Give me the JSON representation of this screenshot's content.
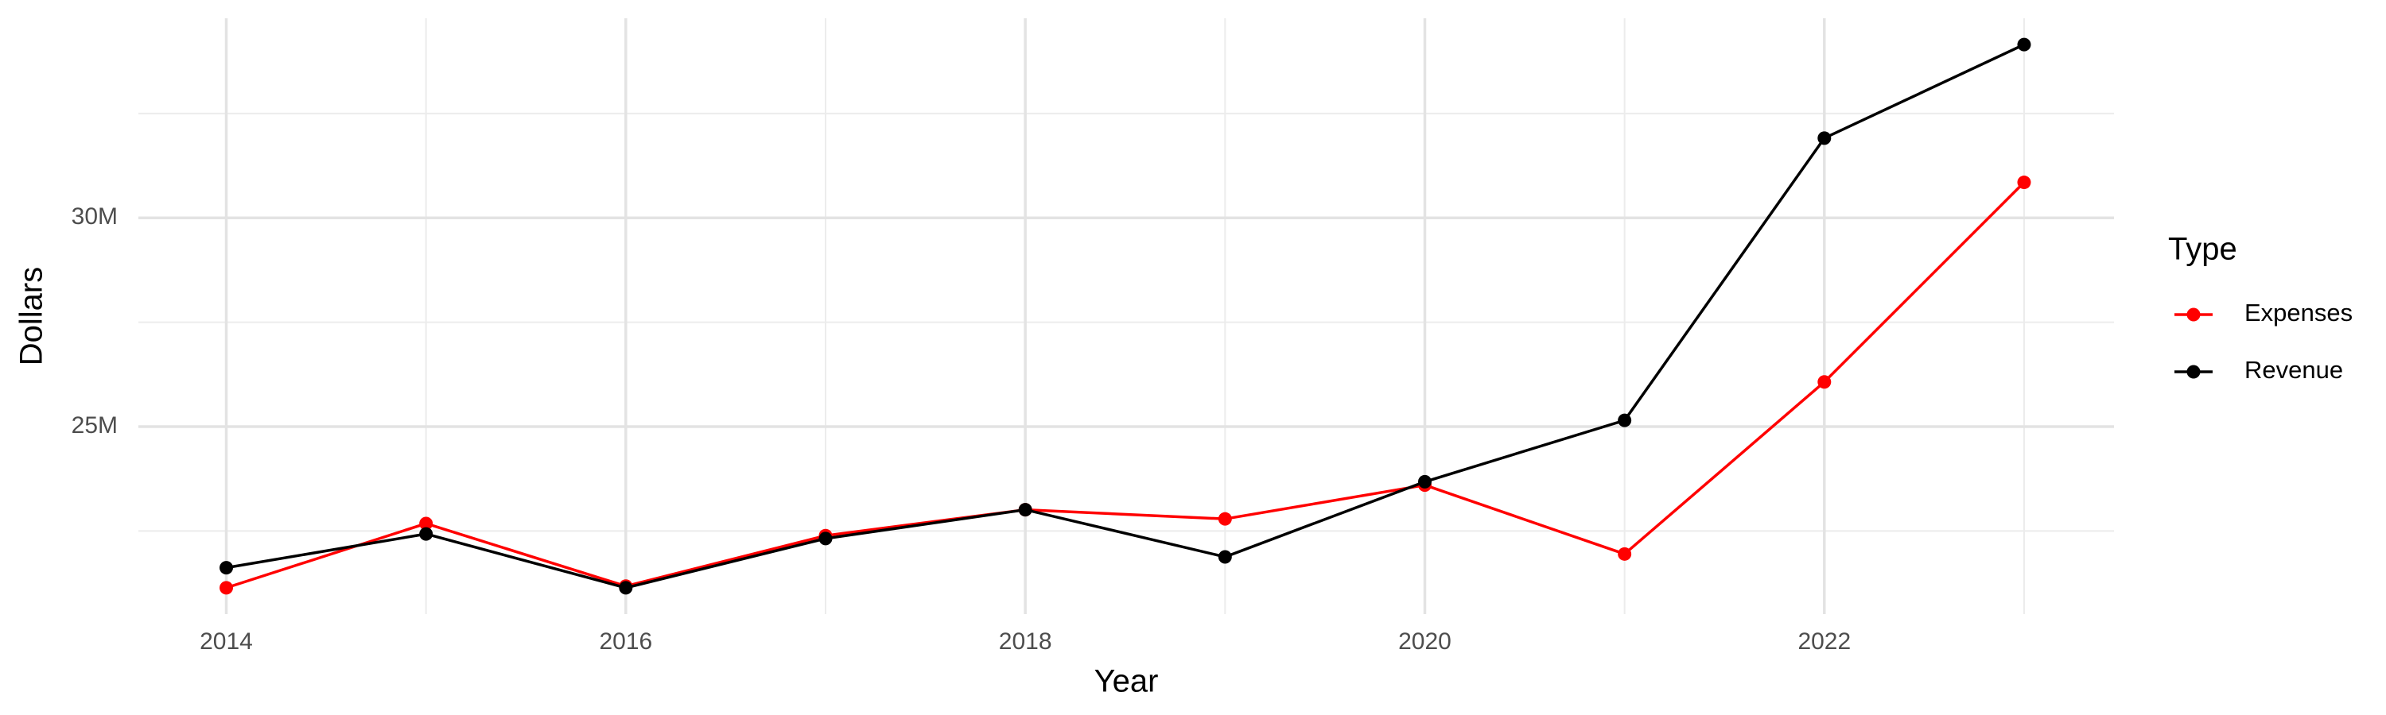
{
  "chart_data": {
    "type": "line",
    "x_label": "Year",
    "y_label": "Dollars",
    "legend_title": "Type",
    "legend_position": "right",
    "grid": true,
    "x": [
      2014,
      2015,
      2016,
      2017,
      2018,
      2019,
      2020,
      2021,
      2022,
      2023
    ],
    "series": [
      {
        "name": "Expenses",
        "color": "#ff0000",
        "values": [
          21140000,
          22680000,
          21180000,
          22390000,
          23010000,
          22790000,
          23600000,
          21950000,
          26070000,
          30850000
        ]
      },
      {
        "name": "Revenue",
        "color": "#000000",
        "values": [
          21620000,
          22430000,
          21140000,
          22320000,
          23010000,
          21880000,
          23680000,
          25150000,
          31910000,
          34150000
        ]
      }
    ],
    "xlim": [
      2013.56,
      2023.45
    ],
    "xticks": [
      2014,
      2016,
      2018,
      2020,
      2022
    ],
    "minor_xticks": [
      2015,
      2017,
      2019,
      2021,
      2023
    ],
    "ylim": [
      20510000,
      34780000
    ],
    "yticks": [
      {
        "value": 25000000,
        "label": "25M"
      },
      {
        "value": 30000000,
        "label": "30M"
      }
    ],
    "minor_yticks": [
      22500000,
      27500000,
      32500000
    ]
  }
}
